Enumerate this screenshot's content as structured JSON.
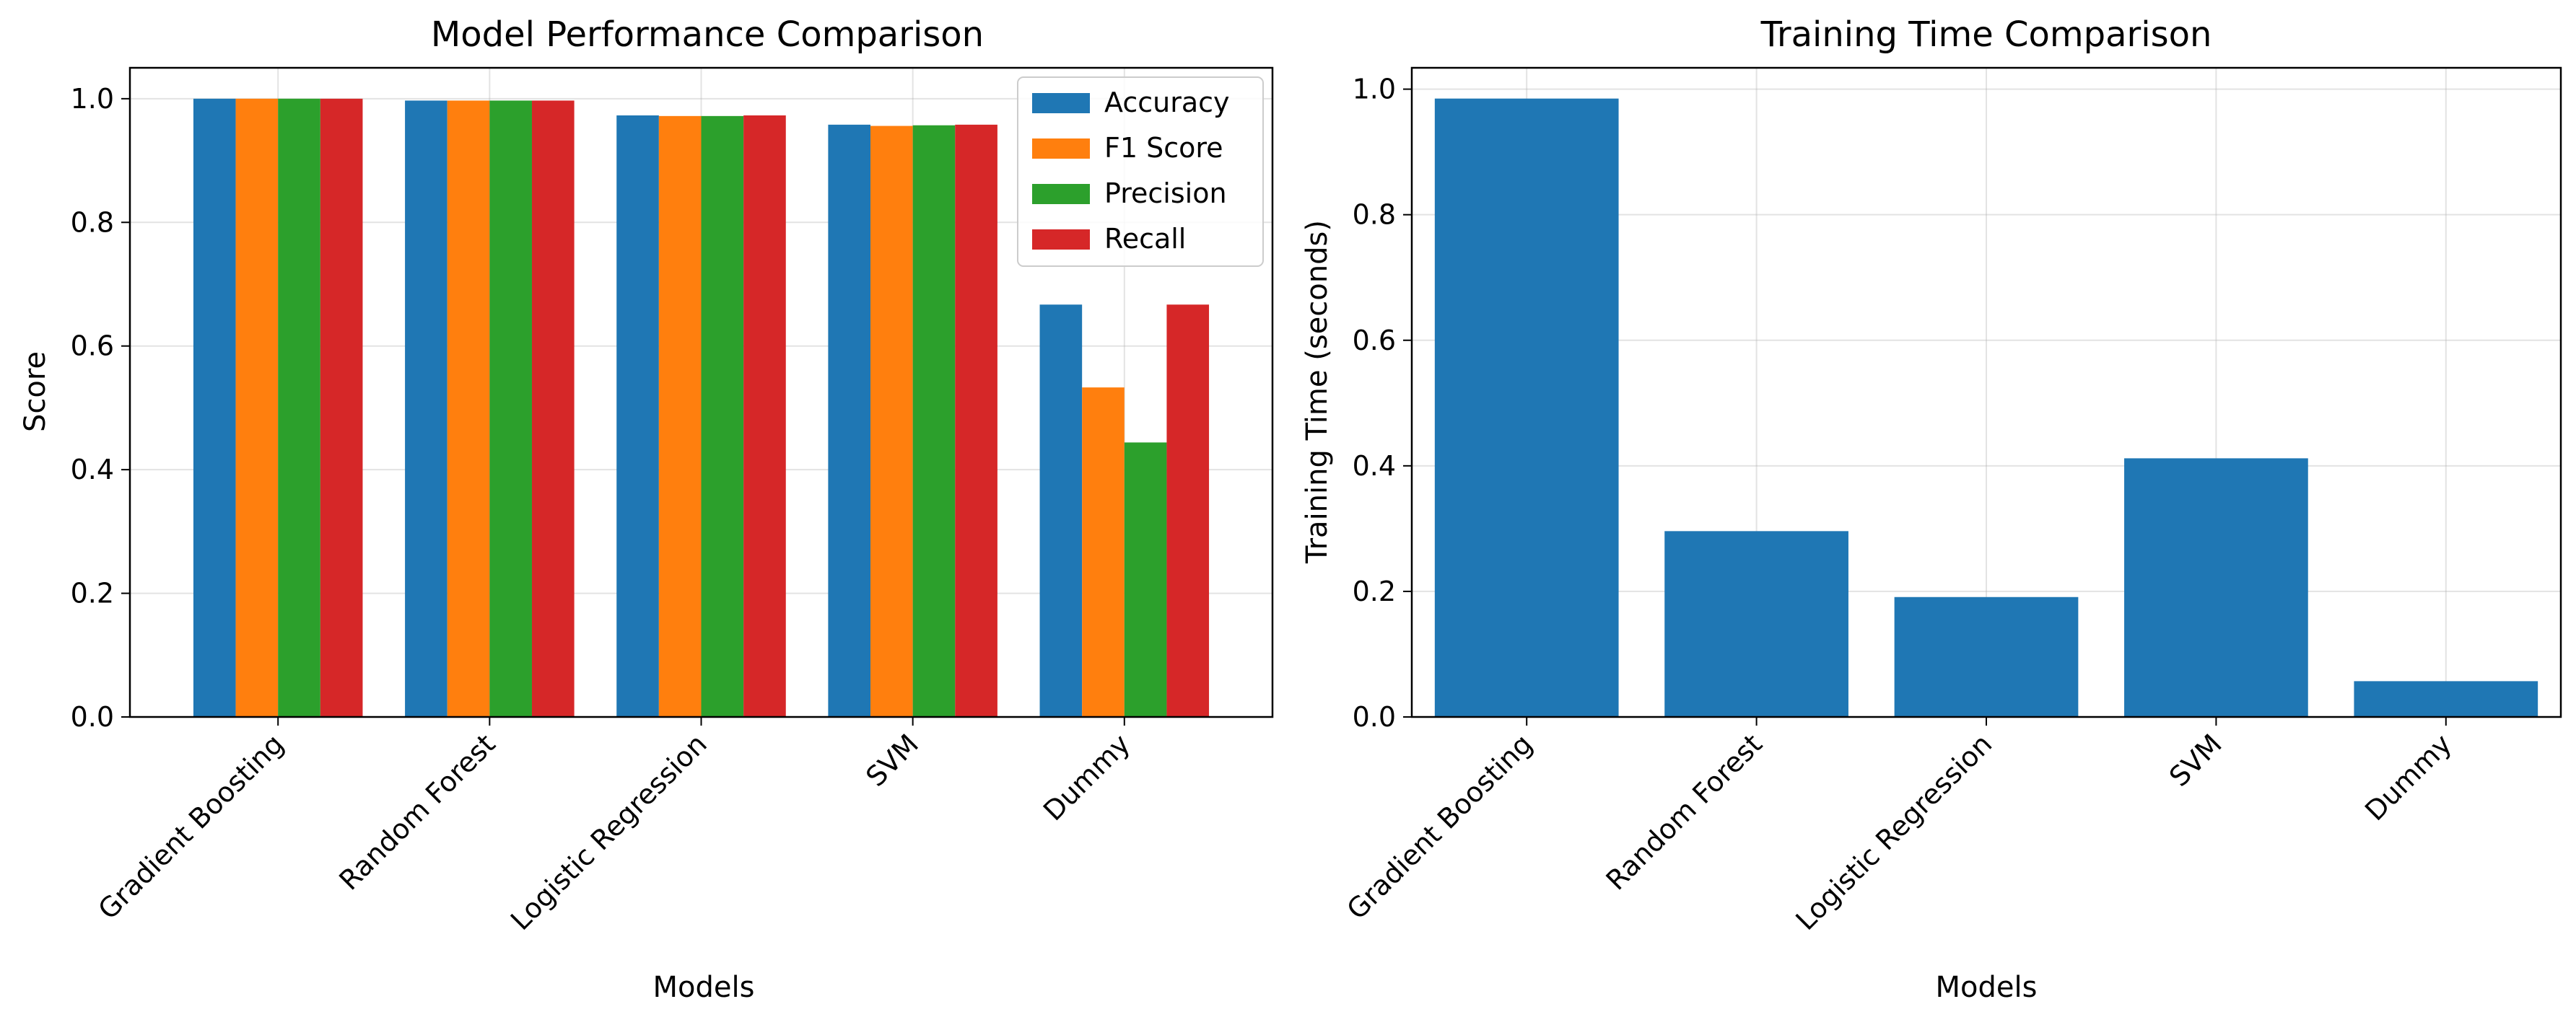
{
  "chart_data": [
    {
      "type": "bar",
      "title": "Model Performance Comparison",
      "xlabel": "Models",
      "ylabel": "Score",
      "categories": [
        "Gradient Boosting",
        "Random Forest",
        "Logistic Regression",
        "SVM",
        "Dummy"
      ],
      "series": [
        {
          "name": "Accuracy",
          "color": "#1f77b4",
          "values": [
            1.0,
            0.997,
            0.973,
            0.958,
            0.667
          ]
        },
        {
          "name": "F1 Score",
          "color": "#ff7f0e",
          "values": [
            1.0,
            0.997,
            0.972,
            0.956,
            0.533
          ]
        },
        {
          "name": "Precision",
          "color": "#2ca02c",
          "values": [
            1.0,
            0.997,
            0.972,
            0.957,
            0.444
          ]
        },
        {
          "name": "Recall",
          "color": "#d62728",
          "values": [
            1.0,
            0.997,
            0.973,
            0.958,
            0.667
          ]
        }
      ],
      "ylim": [
        0,
        1.05
      ],
      "yticks": [
        "0.0",
        "0.2",
        "0.4",
        "0.6",
        "0.8",
        "1.0"
      ],
      "grid": true,
      "legend": "top-right"
    },
    {
      "type": "bar",
      "title": "Training Time Comparison",
      "xlabel": "Models",
      "ylabel": "Training Time (seconds)",
      "categories": [
        "Gradient Boosting",
        "Random Forest",
        "Logistic Regression",
        "SVM",
        "Dummy"
      ],
      "series": [
        {
          "color": "#1f77b4",
          "values": [
            0.985,
            0.296,
            0.191,
            0.412,
            0.057
          ]
        }
      ],
      "ylim": [
        0,
        1.034
      ],
      "yticks": [
        "0.0",
        "0.2",
        "0.4",
        "0.6",
        "0.8",
        "1.0"
      ],
      "grid": true
    }
  ]
}
